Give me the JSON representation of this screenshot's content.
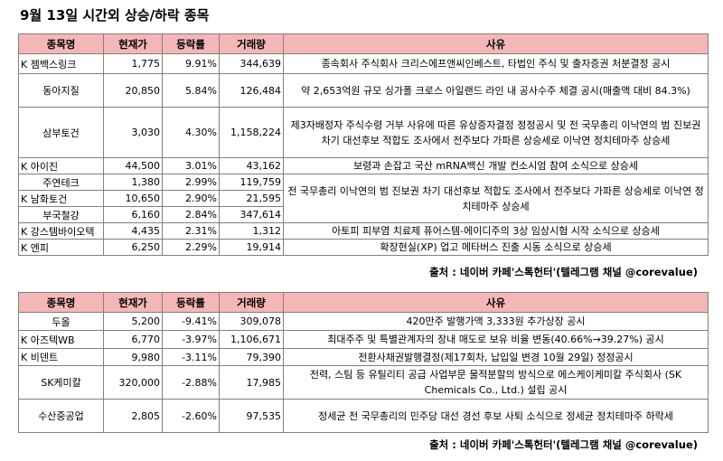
{
  "title": "9월 13일  시간외 상승/하락 종목",
  "headers": {
    "name": "종목명",
    "price": "현재가",
    "rate": "등락률",
    "volume": "거래량",
    "reason": "사유"
  },
  "rising": [
    {
      "name": "K 젬백스링크",
      "price": "1,775",
      "rate": "9.91%",
      "volume": "344,639",
      "reason": "종속회사 주식회사 크리스에프앤씨인베스트, 타법인 주식 및 출자증권 처분결정 공시"
    },
    {
      "name": "동아지질",
      "price": "20,850",
      "rate": "5.84%",
      "volume": "126,484",
      "reason": "약 2,653억원 규모 싱가폴 크로스 아일랜드 라인 내 공사수주 체결 공시(매출액 대비 84.3%)"
    },
    {
      "name": "삼부토건",
      "price": "3,030",
      "rate": "4.30%",
      "volume": "1,158,224",
      "reason": "제3자배정자 주식수령 거부 사유에 따른 유상증자결정 정정공시 및 전 국무총리 이낙연의 범 진보권 차기 대선후보 적합도 조사에서 전주보다 가파른 상승세로 이낙연 정치테마주 상승세"
    },
    {
      "name": "K 아이진",
      "price": "44,500",
      "rate": "3.01%",
      "volume": "43,162",
      "reason": "보령과 손잡고 국산 mRNA백신 개발 컨소시엄 참여 소식으로 상승세"
    },
    {
      "name": "주연테크",
      "price": "1,380",
      "rate": "2.99%",
      "volume": "119,759"
    },
    {
      "name": "K 남화토건",
      "price": "10,650",
      "rate": "2.90%",
      "volume": "21,595"
    },
    {
      "name": "부국철강",
      "price": "6,160",
      "rate": "2.84%",
      "volume": "347,614"
    },
    {
      "name": "K 강스템바이오텍",
      "price": "4,435",
      "rate": "2.31%",
      "volume": "1,312",
      "reason": "아토피 피부염 치료제 퓨어스템-에이디주의 3상 임상시험 시작 소식으로 상승세"
    },
    {
      "name": "K 엔피",
      "price": "6,250",
      "rate": "2.29%",
      "volume": "19,914",
      "reason": "확장현실(XP) 업고 메타버스 진출 시동 소식으로 상승세"
    }
  ],
  "rising_merged_reason": "전 국무총리 이낙연의 범 진보권 차기 대선후보 적합도 조사에서 전주보다 가파른 상승세로 이낙연 정치테마주 상승세",
  "source1": "출처 : 네이버 카페'스톡헌터'(텔레그램 채널 @corevalue)",
  "falling": [
    {
      "name": "두올",
      "price": "5,200",
      "rate": "-9.41%",
      "volume": "309,078",
      "reason": "420만주 발행가액  3,333원  추가상장 공시"
    },
    {
      "name": "K 아즈텍WB",
      "price": "6,770",
      "rate": "-3.97%",
      "volume": "1,106,671",
      "reason": "최대주주 및 특별관계자의 장내 매도로 보유 비율 변동(40.66%→39.27%) 공시"
    },
    {
      "name": "K 비덴트",
      "price": "9,980",
      "rate": "-3.11%",
      "volume": "79,390",
      "reason": "전환사채권발행결정(제17회차, 납입일 변경 10월 29일) 정정공시"
    },
    {
      "name": "SK케미칼",
      "price": "320,000",
      "rate": "-2.88%",
      "volume": "17,985",
      "reason": "전력, 스팀 등 유틸리티 공급 사업부문 물적분할의 방식으로 에스케이케미칼 주식회사 (SK Chemicals Co., Ltd.) 설립 공시"
    },
    {
      "name": "수산중공업",
      "price": "2,805",
      "rate": "-2.60%",
      "volume": "97,535",
      "reason": "정세균 전 국무총리의 민주당 대선 경선 후보 사퇴 소식으로 정세균 정치테마주 하락세"
    }
  ],
  "source2": "출처 : 네이버 카페'스톡헌터'(텔레그램 채널 @corevalue)"
}
